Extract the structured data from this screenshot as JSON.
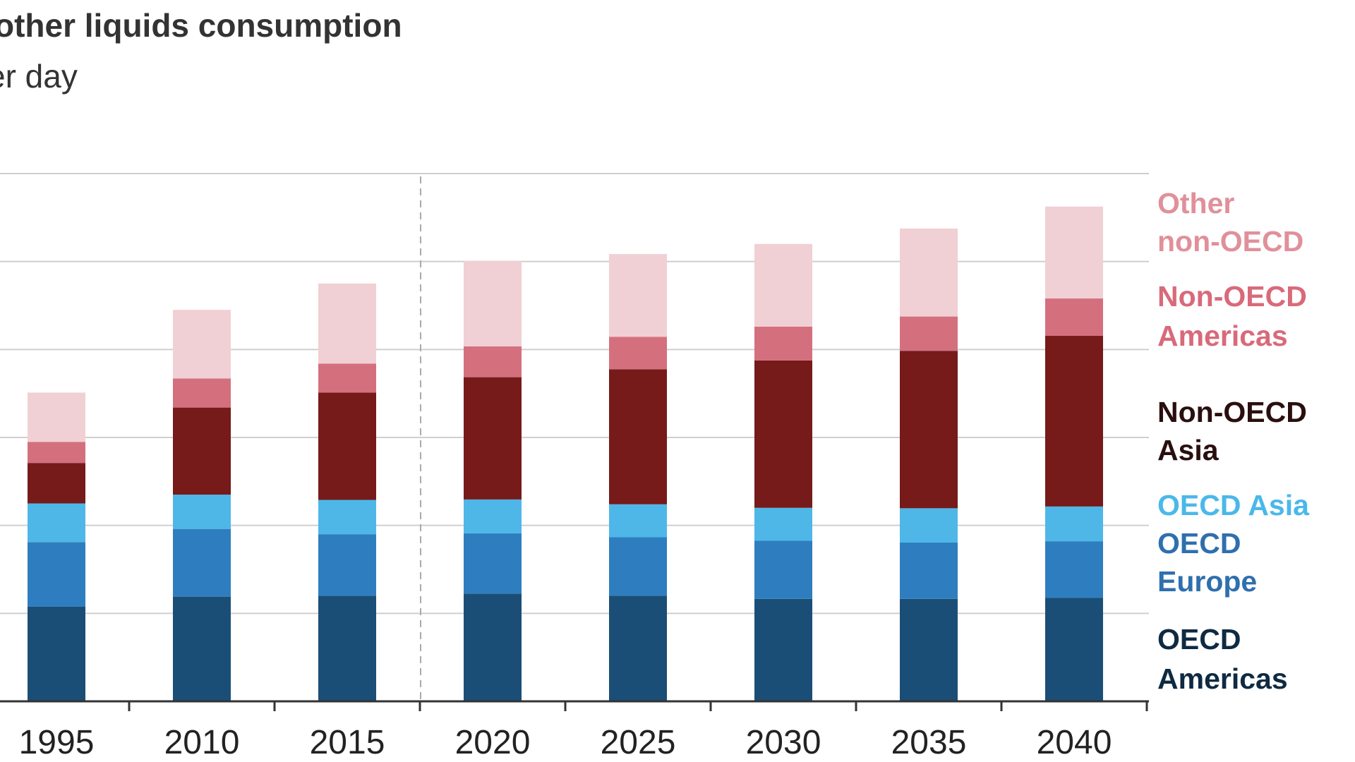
{
  "chart_data": {
    "type": "bar",
    "stacked": true,
    "title": "other liquids consumption",
    "subtitle": "er day",
    "categories": [
      "1995",
      "2010",
      "2015",
      "2020",
      "2025",
      "2030",
      "2035",
      "2040"
    ],
    "ylim": [
      0,
      120
    ],
    "grid": true,
    "legend_position": "right",
    "projection_divider_after": "2015",
    "series": [
      {
        "name": "OECD Americas",
        "color": "#1b4e76",
        "values": [
          21.5,
          23.8,
          24.0,
          24.5,
          24.0,
          23.3,
          23.3,
          23.5
        ]
      },
      {
        "name": "OECD Europe",
        "color": "#2e7ebf",
        "values": [
          14.7,
          15.4,
          14.0,
          13.7,
          13.3,
          13.2,
          12.8,
          12.9
        ]
      },
      {
        "name": "OECD Asia",
        "color": "#4eb7e8",
        "values": [
          8.8,
          7.8,
          7.8,
          7.7,
          7.5,
          7.5,
          7.8,
          7.9
        ]
      },
      {
        "name": "Non-OECD Asia",
        "color": "#761a1a",
        "values": [
          9.2,
          19.8,
          24.4,
          27.8,
          30.7,
          33.5,
          35.8,
          38.8
        ]
      },
      {
        "name": "Non-OECD Americas",
        "color": "#d4707e",
        "values": [
          4.8,
          6.6,
          6.6,
          7.0,
          7.4,
          7.7,
          7.8,
          8.5
        ]
      },
      {
        "name": "Other non-OECD",
        "color": "#f0d0d4",
        "values": [
          11.2,
          15.6,
          18.2,
          19.4,
          18.8,
          18.8,
          20.0,
          20.9
        ]
      }
    ]
  },
  "legend": {
    "other_non_oecd": {
      "lines": [
        "Other",
        "non-OECD"
      ],
      "color": "#e0909a"
    },
    "non_oecd_americas": {
      "lines": [
        "Non-OECD",
        "Americas"
      ],
      "color": "#d86a7a"
    },
    "non_oecd_asia": {
      "lines": [
        "Non-OECD",
        "Asia"
      ],
      "color": "#2a0f0f"
    },
    "oecd_asia": {
      "lines": [
        "OECD Asia"
      ],
      "color": "#4ab8ea"
    },
    "oecd_europe": {
      "lines": [
        "OECD",
        "Europe"
      ],
      "color": "#2e6fae"
    },
    "oecd_americas": {
      "lines": [
        "OECD",
        "Americas"
      ],
      "color": "#0f2a42"
    }
  }
}
